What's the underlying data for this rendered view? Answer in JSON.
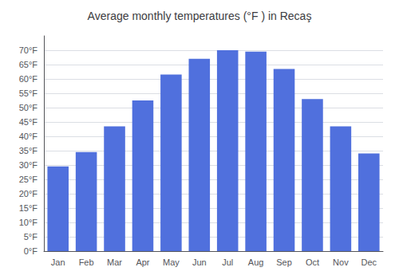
{
  "chart_data": {
    "type": "bar",
    "title": "Average monthly temperatures (°F ) in Recaş",
    "categories": [
      "Jan",
      "Feb",
      "Mar",
      "Apr",
      "May",
      "Jun",
      "Jul",
      "Aug",
      "Sep",
      "Oct",
      "Nov",
      "Dec"
    ],
    "values": [
      29.5,
      34.5,
      43.5,
      52.5,
      61.5,
      67.0,
      70.0,
      69.5,
      63.5,
      53.0,
      43.5,
      34.0
    ],
    "ylim": [
      0,
      75
    ],
    "yticks": [
      {
        "value": 0,
        "label": "0°F"
      },
      {
        "value": 5,
        "label": "5°F"
      },
      {
        "value": 10,
        "label": "10°F"
      },
      {
        "value": 15,
        "label": "15°F"
      },
      {
        "value": 20,
        "label": "20°F"
      },
      {
        "value": 25,
        "label": "25°F"
      },
      {
        "value": 30,
        "label": "30°F"
      },
      {
        "value": 35,
        "label": "35°F"
      },
      {
        "value": 40,
        "label": "40°F"
      },
      {
        "value": 45,
        "label": "45°F"
      },
      {
        "value": 50,
        "label": "50°F"
      },
      {
        "value": 55,
        "label": "55°F"
      },
      {
        "value": 60,
        "label": "60°F"
      },
      {
        "value": 65,
        "label": "65°F"
      },
      {
        "value": 70,
        "label": "70°F"
      }
    ],
    "grid": true
  }
}
